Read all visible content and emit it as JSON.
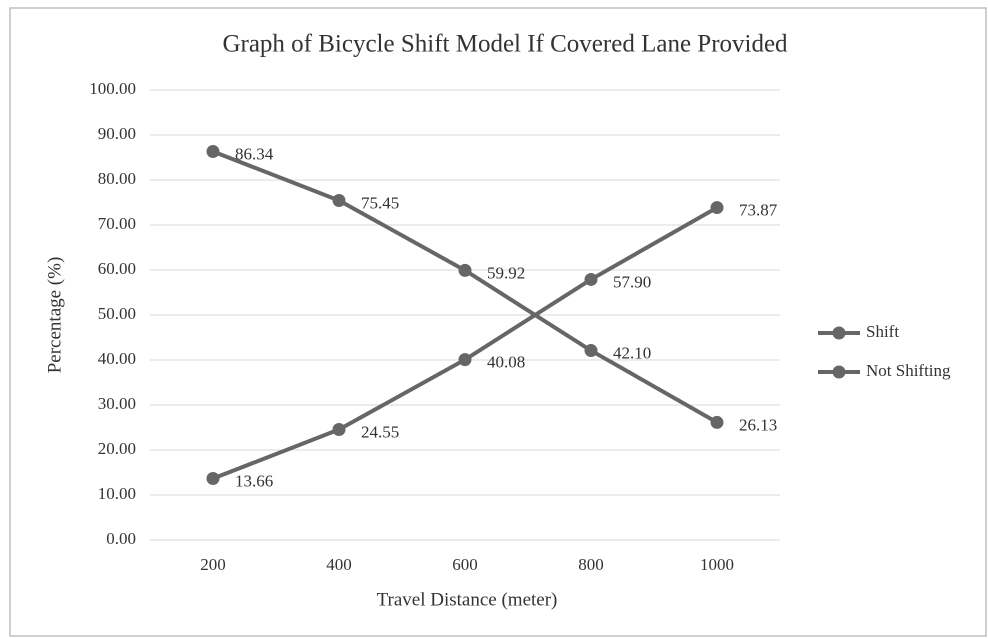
{
  "chart_data": {
    "type": "line",
    "title": "Graph of Bicycle Shift Model If Covered Lane Provided",
    "x_label": "Travel Distance (meter)",
    "y_label": "Percentage (%)",
    "categories": [
      "200",
      "400",
      "600",
      "800",
      "1000"
    ],
    "series": [
      {
        "name": "Shift",
        "color": "#666666",
        "values": [
          13.66,
          24.55,
          40.08,
          57.9,
          73.87
        ],
        "value_labels": [
          "13.66",
          "24.55",
          "40.08",
          "57.90",
          "73.87"
        ]
      },
      {
        "name": "Not Shifting",
        "color": "#666666",
        "values": [
          86.34,
          75.45,
          59.92,
          42.1,
          26.13
        ],
        "value_labels": [
          "86.34",
          "75.45",
          "59.92",
          "42.10",
          "26.13"
        ]
      }
    ],
    "ylim": [
      0,
      100
    ],
    "yticks": [
      {
        "value": 0,
        "label": "0.00"
      },
      {
        "value": 10,
        "label": "10.00"
      },
      {
        "value": 20,
        "label": "20.00"
      },
      {
        "value": 30,
        "label": "30.00"
      },
      {
        "value": 40,
        "label": "40.00"
      },
      {
        "value": 50,
        "label": "50.00"
      },
      {
        "value": 60,
        "label": "60.00"
      },
      {
        "value": 70,
        "label": "70.00"
      },
      {
        "value": 80,
        "label": "80.00"
      },
      {
        "value": 90,
        "label": "90.00"
      },
      {
        "value": 100,
        "label": "100.00"
      }
    ],
    "grid": true,
    "legend": "right"
  }
}
